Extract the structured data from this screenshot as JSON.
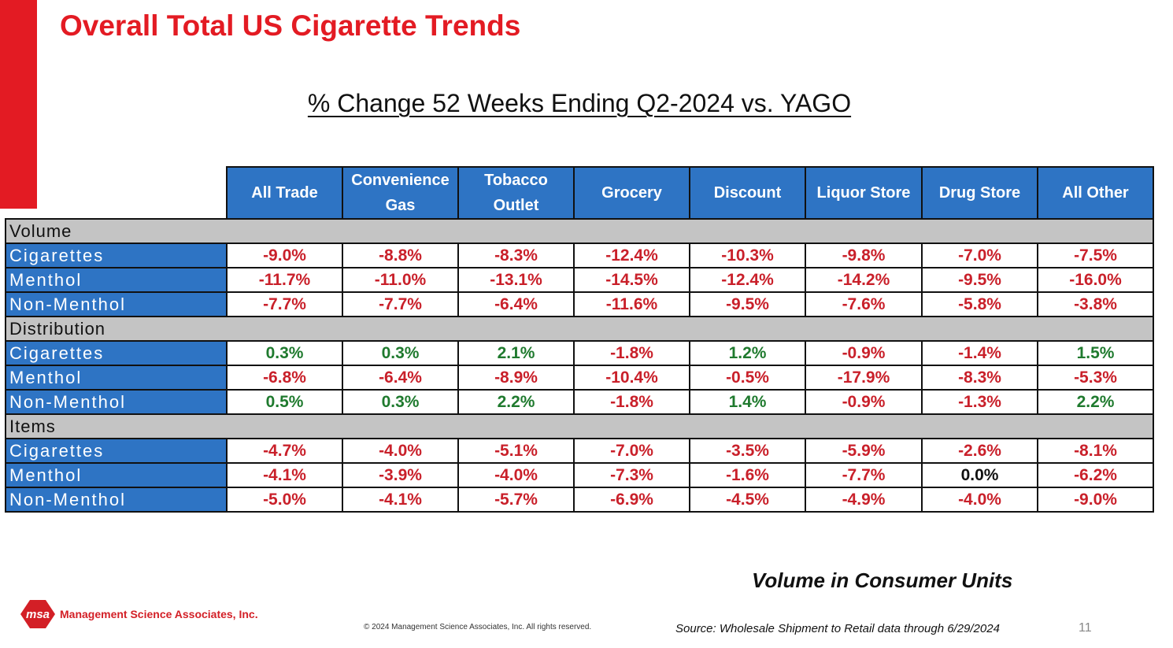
{
  "title": "Overall Total US Cigarette Trends",
  "subtitle": "% Change 52 Weeks Ending Q2-2024 vs. YAGO",
  "colors": {
    "accent": "#e31b23",
    "header_blue": "#2e74c4",
    "negative": "#c9202a",
    "positive": "#1f7a2e"
  },
  "table": {
    "columns": [
      {
        "line1": "All Trade",
        "line2": ""
      },
      {
        "line1": "Convenience",
        "line2": "Gas"
      },
      {
        "line1": "Tobacco",
        "line2": "Outlet"
      },
      {
        "line1": "Grocery",
        "line2": ""
      },
      {
        "line1": "Discount",
        "line2": ""
      },
      {
        "line1": "Liquor Store",
        "line2": ""
      },
      {
        "line1": "Drug Store",
        "line2": ""
      },
      {
        "line1": "All Other",
        "line2": ""
      }
    ],
    "sections": [
      {
        "name": "Volume",
        "rows": [
          {
            "label": "Cigarettes",
            "values": [
              "-9.0%",
              "-8.8%",
              "-8.3%",
              "-12.4%",
              "-10.3%",
              "-9.8%",
              "-7.0%",
              "-7.5%"
            ]
          },
          {
            "label": "Menthol",
            "values": [
              "-11.7%",
              "-11.0%",
              "-13.1%",
              "-14.5%",
              "-12.4%",
              "-14.2%",
              "-9.5%",
              "-16.0%"
            ]
          },
          {
            "label": "Non-Menthol",
            "values": [
              "-7.7%",
              "-7.7%",
              "-6.4%",
              "-11.6%",
              "-9.5%",
              "-7.6%",
              "-5.8%",
              "-3.8%"
            ]
          }
        ]
      },
      {
        "name": "Distribution",
        "rows": [
          {
            "label": "Cigarettes",
            "values": [
              "0.3%",
              "0.3%",
              "2.1%",
              "-1.8%",
              "1.2%",
              "-0.9%",
              "-1.4%",
              "1.5%"
            ]
          },
          {
            "label": "Menthol",
            "values": [
              "-6.8%",
              "-6.4%",
              "-8.9%",
              "-10.4%",
              "-0.5%",
              "-17.9%",
              "-8.3%",
              "-5.3%"
            ]
          },
          {
            "label": "Non-Menthol",
            "values": [
              "0.5%",
              "0.3%",
              "2.2%",
              "-1.8%",
              "1.4%",
              "-0.9%",
              "-1.3%",
              "2.2%"
            ]
          }
        ]
      },
      {
        "name": "Items",
        "rows": [
          {
            "label": "Cigarettes",
            "values": [
              "-4.7%",
              "-4.0%",
              "-5.1%",
              "-7.0%",
              "-3.5%",
              "-5.9%",
              "-2.6%",
              "-8.1%"
            ]
          },
          {
            "label": "Menthol",
            "values": [
              "-4.1%",
              "-3.9%",
              "-4.0%",
              "-7.3%",
              "-1.6%",
              "-7.7%",
              "0.0%",
              "-6.2%"
            ]
          },
          {
            "label": "Non-Menthol",
            "values": [
              "-5.0%",
              "-4.1%",
              "-5.7%",
              "-6.9%",
              "-4.5%",
              "-4.9%",
              "-4.0%",
              "-9.0%"
            ]
          }
        ]
      }
    ]
  },
  "units_note": "Volume in Consumer Units",
  "footer": {
    "logo_mark": "msa",
    "company": "Management Science Associates, Inc.",
    "copyright": "© 2024 Management Science Associates, Inc.  All rights reserved.",
    "source": "Source: Wholesale Shipment to Retail data through 6/29/2024",
    "page_number": "11"
  }
}
